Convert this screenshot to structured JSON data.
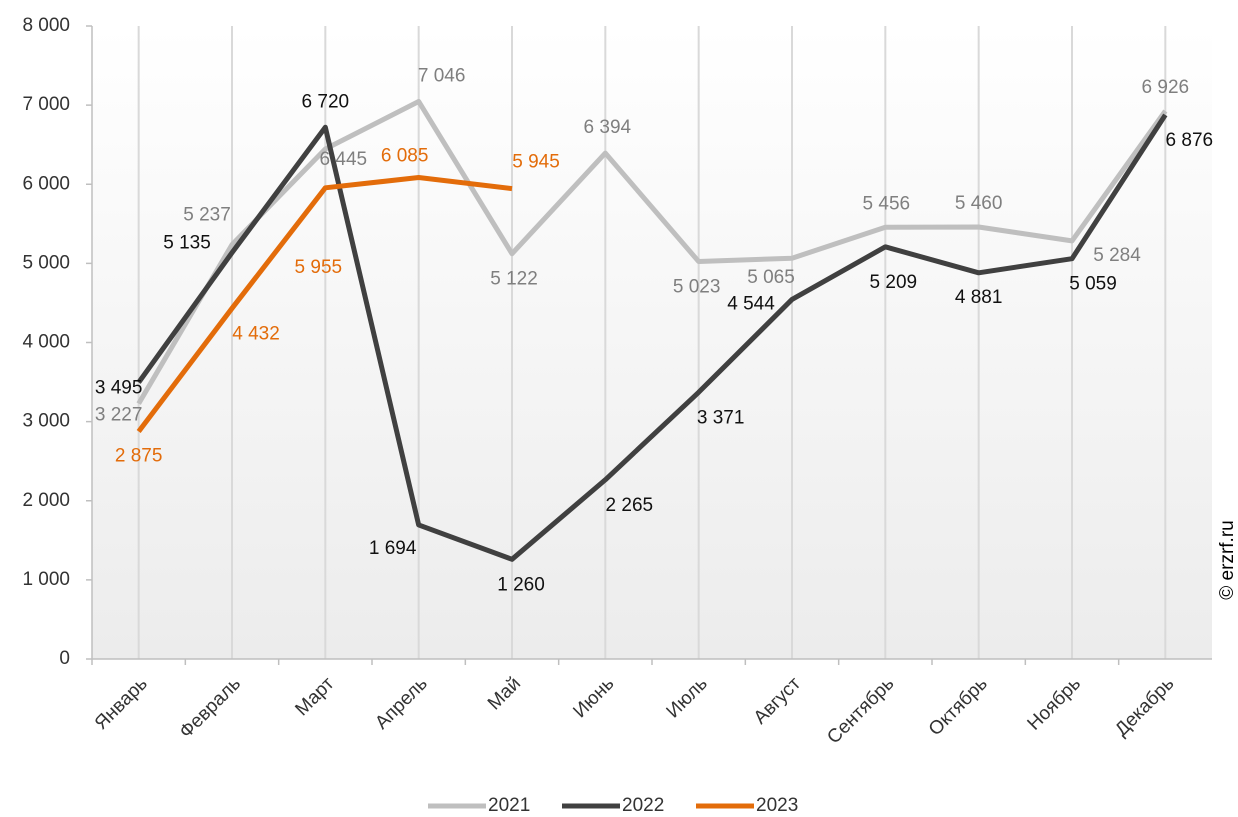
{
  "chart_data": {
    "type": "line",
    "categories": [
      "Январь",
      "Февраль",
      "Март",
      "Апрель",
      "Май",
      "Июнь",
      "Июль",
      "Август",
      "Сентябрь",
      "Октябрь",
      "Ноябрь",
      "Декабрь"
    ],
    "series": [
      {
        "name": "2021",
        "color": "#bfbfbf",
        "label_color": "#7f7f7f",
        "values": [
          3227,
          5237,
          6445,
          7046,
          5122,
          6394,
          5023,
          5065,
          5456,
          5460,
          5284,
          6926
        ],
        "value_labels": [
          "3 227",
          "5 237",
          "6 445",
          "7 046",
          "5 122",
          "6 394",
          "5 023",
          "5 065",
          "5 456",
          "5 460",
          "5 284",
          "6 926"
        ]
      },
      {
        "name": "2022",
        "color": "#404040",
        "label_color": "#111111",
        "values": [
          3495,
          5135,
          6720,
          1694,
          1260,
          2265,
          3371,
          4544,
          5209,
          4881,
          5059,
          6876
        ],
        "value_labels": [
          "3 495",
          "5 135",
          "6 720",
          "1 694",
          "1 260",
          "2 265",
          "3 371",
          "4 544",
          "5 209",
          "4 881",
          "5 059",
          "6 876"
        ]
      },
      {
        "name": "2023",
        "color": "#e36c0a",
        "label_color": "#e36c0a",
        "values": [
          2875,
          4432,
          5955,
          6085,
          5945,
          null,
          null,
          null,
          null,
          null,
          null,
          null
        ],
        "value_labels": [
          "2 875",
          "4 432",
          "5 955",
          "6 085",
          "5 945",
          null,
          null,
          null,
          null,
          null,
          null,
          null
        ]
      }
    ],
    "ylim": [
      0,
      8000
    ],
    "yticks": [
      0,
      {
        "value": 1000,
        "label": "1 000"
      },
      {
        "value": 2000,
        "label": "2 000"
      },
      {
        "value": 3000,
        "label": "3 000"
      },
      {
        "value": 4000,
        "label": "4 000"
      },
      {
        "value": 5000,
        "label": "5 000"
      },
      {
        "value": 6000,
        "label": "6 000"
      },
      {
        "value": 7000,
        "label": "7 000"
      },
      {
        "value": 8000,
        "label": "8 000"
      }
    ],
    "legend": "bottom",
    "attribution": "© erzrf.ru"
  }
}
